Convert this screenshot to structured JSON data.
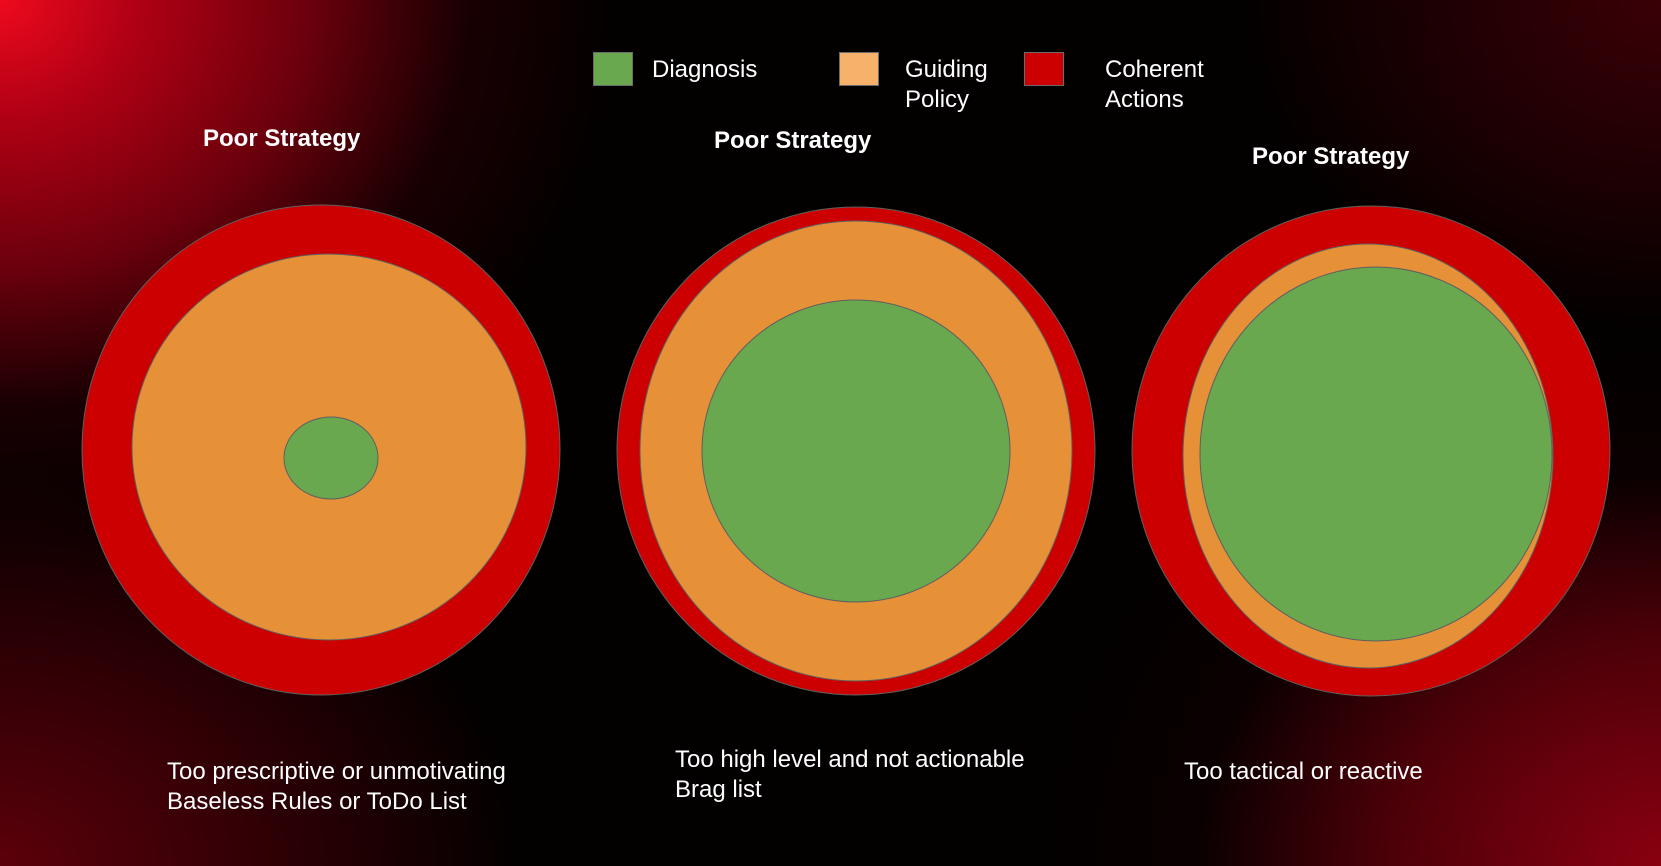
{
  "colors": {
    "diagnosis": "#6aa84f",
    "guiding_policy_legend": "#f6b26b",
    "guiding_policy": "#e69138",
    "coherent_actions": "#cc0000",
    "ring_stroke": "#5f5f5f"
  },
  "legend": [
    {
      "label": "Diagnosis",
      "color_key": "diagnosis"
    },
    {
      "label": "Guiding\nPolicy",
      "color_key": "guiding_policy_legend"
    },
    {
      "label": "Coherent\nActions",
      "color_key": "coherent_actions"
    }
  ],
  "diagrams": [
    {
      "title": "Poor Strategy",
      "caption": "Too prescriptive or unmotivating\nBaseless Rules or ToDo List",
      "layers": [
        "coherent_actions",
        "guiding_policy",
        "diagnosis"
      ]
    },
    {
      "title": "Poor Strategy",
      "caption": "Too high level and not actionable\nBrag list",
      "layers": [
        "coherent_actions",
        "guiding_policy",
        "diagnosis"
      ]
    },
    {
      "title": "Poor Strategy",
      "caption": "Too tactical or reactive",
      "layers": [
        "coherent_actions",
        "guiding_policy",
        "diagnosis"
      ]
    }
  ]
}
